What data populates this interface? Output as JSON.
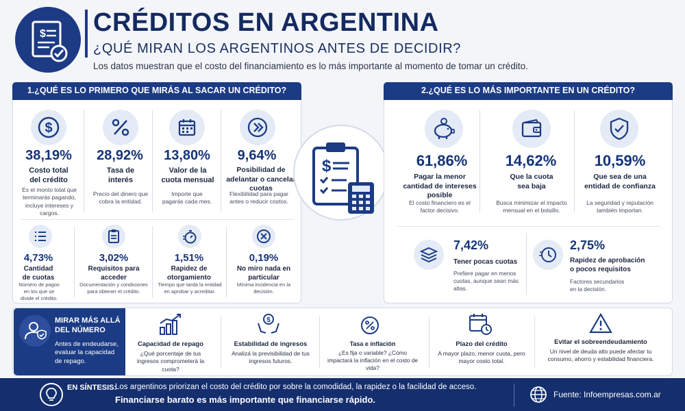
{
  "header": {
    "title": "CRÉDITOS EN ARGENTINA",
    "subtitle": "¿QUÉ MIRAN LOS ARGENTINOS ANTES DE DECIDIR?",
    "intro": "Los datos muestran que el costo del financiamiento es lo más importante al momento de tomar un crédito."
  },
  "section1": {
    "title": "1.¿QUÉ ES LO PRIMERO QUE MIRÁS AL SACAR UN CRÉDITO?",
    "top": [
      {
        "pct": "38,19%",
        "label": "Costo total del crédito",
        "desc": "Es el monto total que terminarás pagando, incluye intereses y cargos.",
        "icon": "dollar-icon"
      },
      {
        "pct": "28,92%",
        "label": "Tasa de interés",
        "desc": "Precio del dinero que cobra la entidad.",
        "icon": "percent-icon"
      },
      {
        "pct": "13,80%",
        "label": "Valor de la cuota mensual",
        "desc": "Importe que pagarás cada mes.",
        "icon": "calendar-icon"
      },
      {
        "pct": "9,64%",
        "label": "Posibilidad de adelantar o cancelar cuotas",
        "desc": "Flexibilidad para pagar antes o reducir costos.",
        "icon": "fast-forward-icon"
      }
    ],
    "bottom": [
      {
        "pct": "4,73%",
        "label": "Cantidad de cuotas",
        "desc": "Número de pagos en los que se divide el crédito.",
        "icon": "list-icon"
      },
      {
        "pct": "3,02%",
        "label": "Requisitos para acceder",
        "desc": "Documentación y condiciones para obtener el crédito.",
        "icon": "clipboard-icon"
      },
      {
        "pct": "1,51%",
        "label": "Rapidez de otorgamiento",
        "desc": "Tiempo que tarda la entidad en aprobar y acreditar.",
        "icon": "stopwatch-icon"
      },
      {
        "pct": "0,19%",
        "label": "No miro nada en particular",
        "desc": "Mínima incidencia en la decisión.",
        "icon": "x-circle-icon"
      }
    ]
  },
  "section2": {
    "title": "2.¿QUÉ ES LO MÁS IMPORTANTE EN UN CRÉDITO?",
    "top": [
      {
        "pct": "61,86%",
        "label": "Pagar la menor cantidad de intereses posible",
        "desc": "El costo financiero es el factor decisivo.",
        "icon": "piggy-bank-icon"
      },
      {
        "pct": "14,62%",
        "label": "Que la cuota sea baja",
        "desc": "Busca minimizar el impacto mensual en el bolsillo.",
        "icon": "wallet-icon"
      },
      {
        "pct": "10,59%",
        "label": "Que sea de una entidad de confianza",
        "desc": "La seguridad y reputación también importan.",
        "icon": "shield-check-icon"
      }
    ],
    "bottom": [
      {
        "pct": "7,42%",
        "label": "Tener pocas cuotas",
        "desc": "Prefiere pagar en menos cuotas, aunque sean más altas.",
        "icon": "layers-icon"
      },
      {
        "pct": "2,75%",
        "label": "Rapidez de aprobación o pocos requisitos",
        "desc": "Factores secundarios en la decisión.",
        "icon": "clock-fast-icon"
      }
    ]
  },
  "beyond": {
    "title": "MIRAR MÁS ALLÁ DEL NÚMERO",
    "text": "Antes de endeudarse, evaluar la capacidad de repago.",
    "items": [
      {
        "title": "Capacidad de repago",
        "text": "¿Qué porcentaje de tus ingresos comprometerá la cuota?",
        "icon": "bar-chart-icon"
      },
      {
        "title": "Estabilidad de ingresos",
        "text": "Analizá la previsibilidad de tus ingresos futuros.",
        "icon": "hands-coin-icon"
      },
      {
        "title": "Tasa e inflación",
        "text": "¿Es fija o variable? ¿Cómo impactará la inflación en el costo de vida?",
        "icon": "percent-tag-icon"
      },
      {
        "title": "Plazo del crédito",
        "text": "A mayor plazo, menor cuota, pero mayor costo total.",
        "icon": "calendar-clock-icon"
      },
      {
        "title": "Evitar el sobreendeudamiento",
        "text": "Un nivel de deuda alto puede afectar tu consumo, ahorro y estabilidad financiera.",
        "icon": "warning-icon"
      }
    ]
  },
  "footer": {
    "label": "EN SÍNTESIS:",
    "line1": "Los argentinos priorizan el costo del crédito por sobre la comodidad, la rapidez o la facilidad de acceso.",
    "line2": "Financiarse barato es más importante que financiarse rápido.",
    "source": "Fuente: Infoempresas.com.ar"
  },
  "colors": {
    "navy": "#1b3b84",
    "light": "#e4ebf6",
    "bg": "#f3f5f9"
  }
}
